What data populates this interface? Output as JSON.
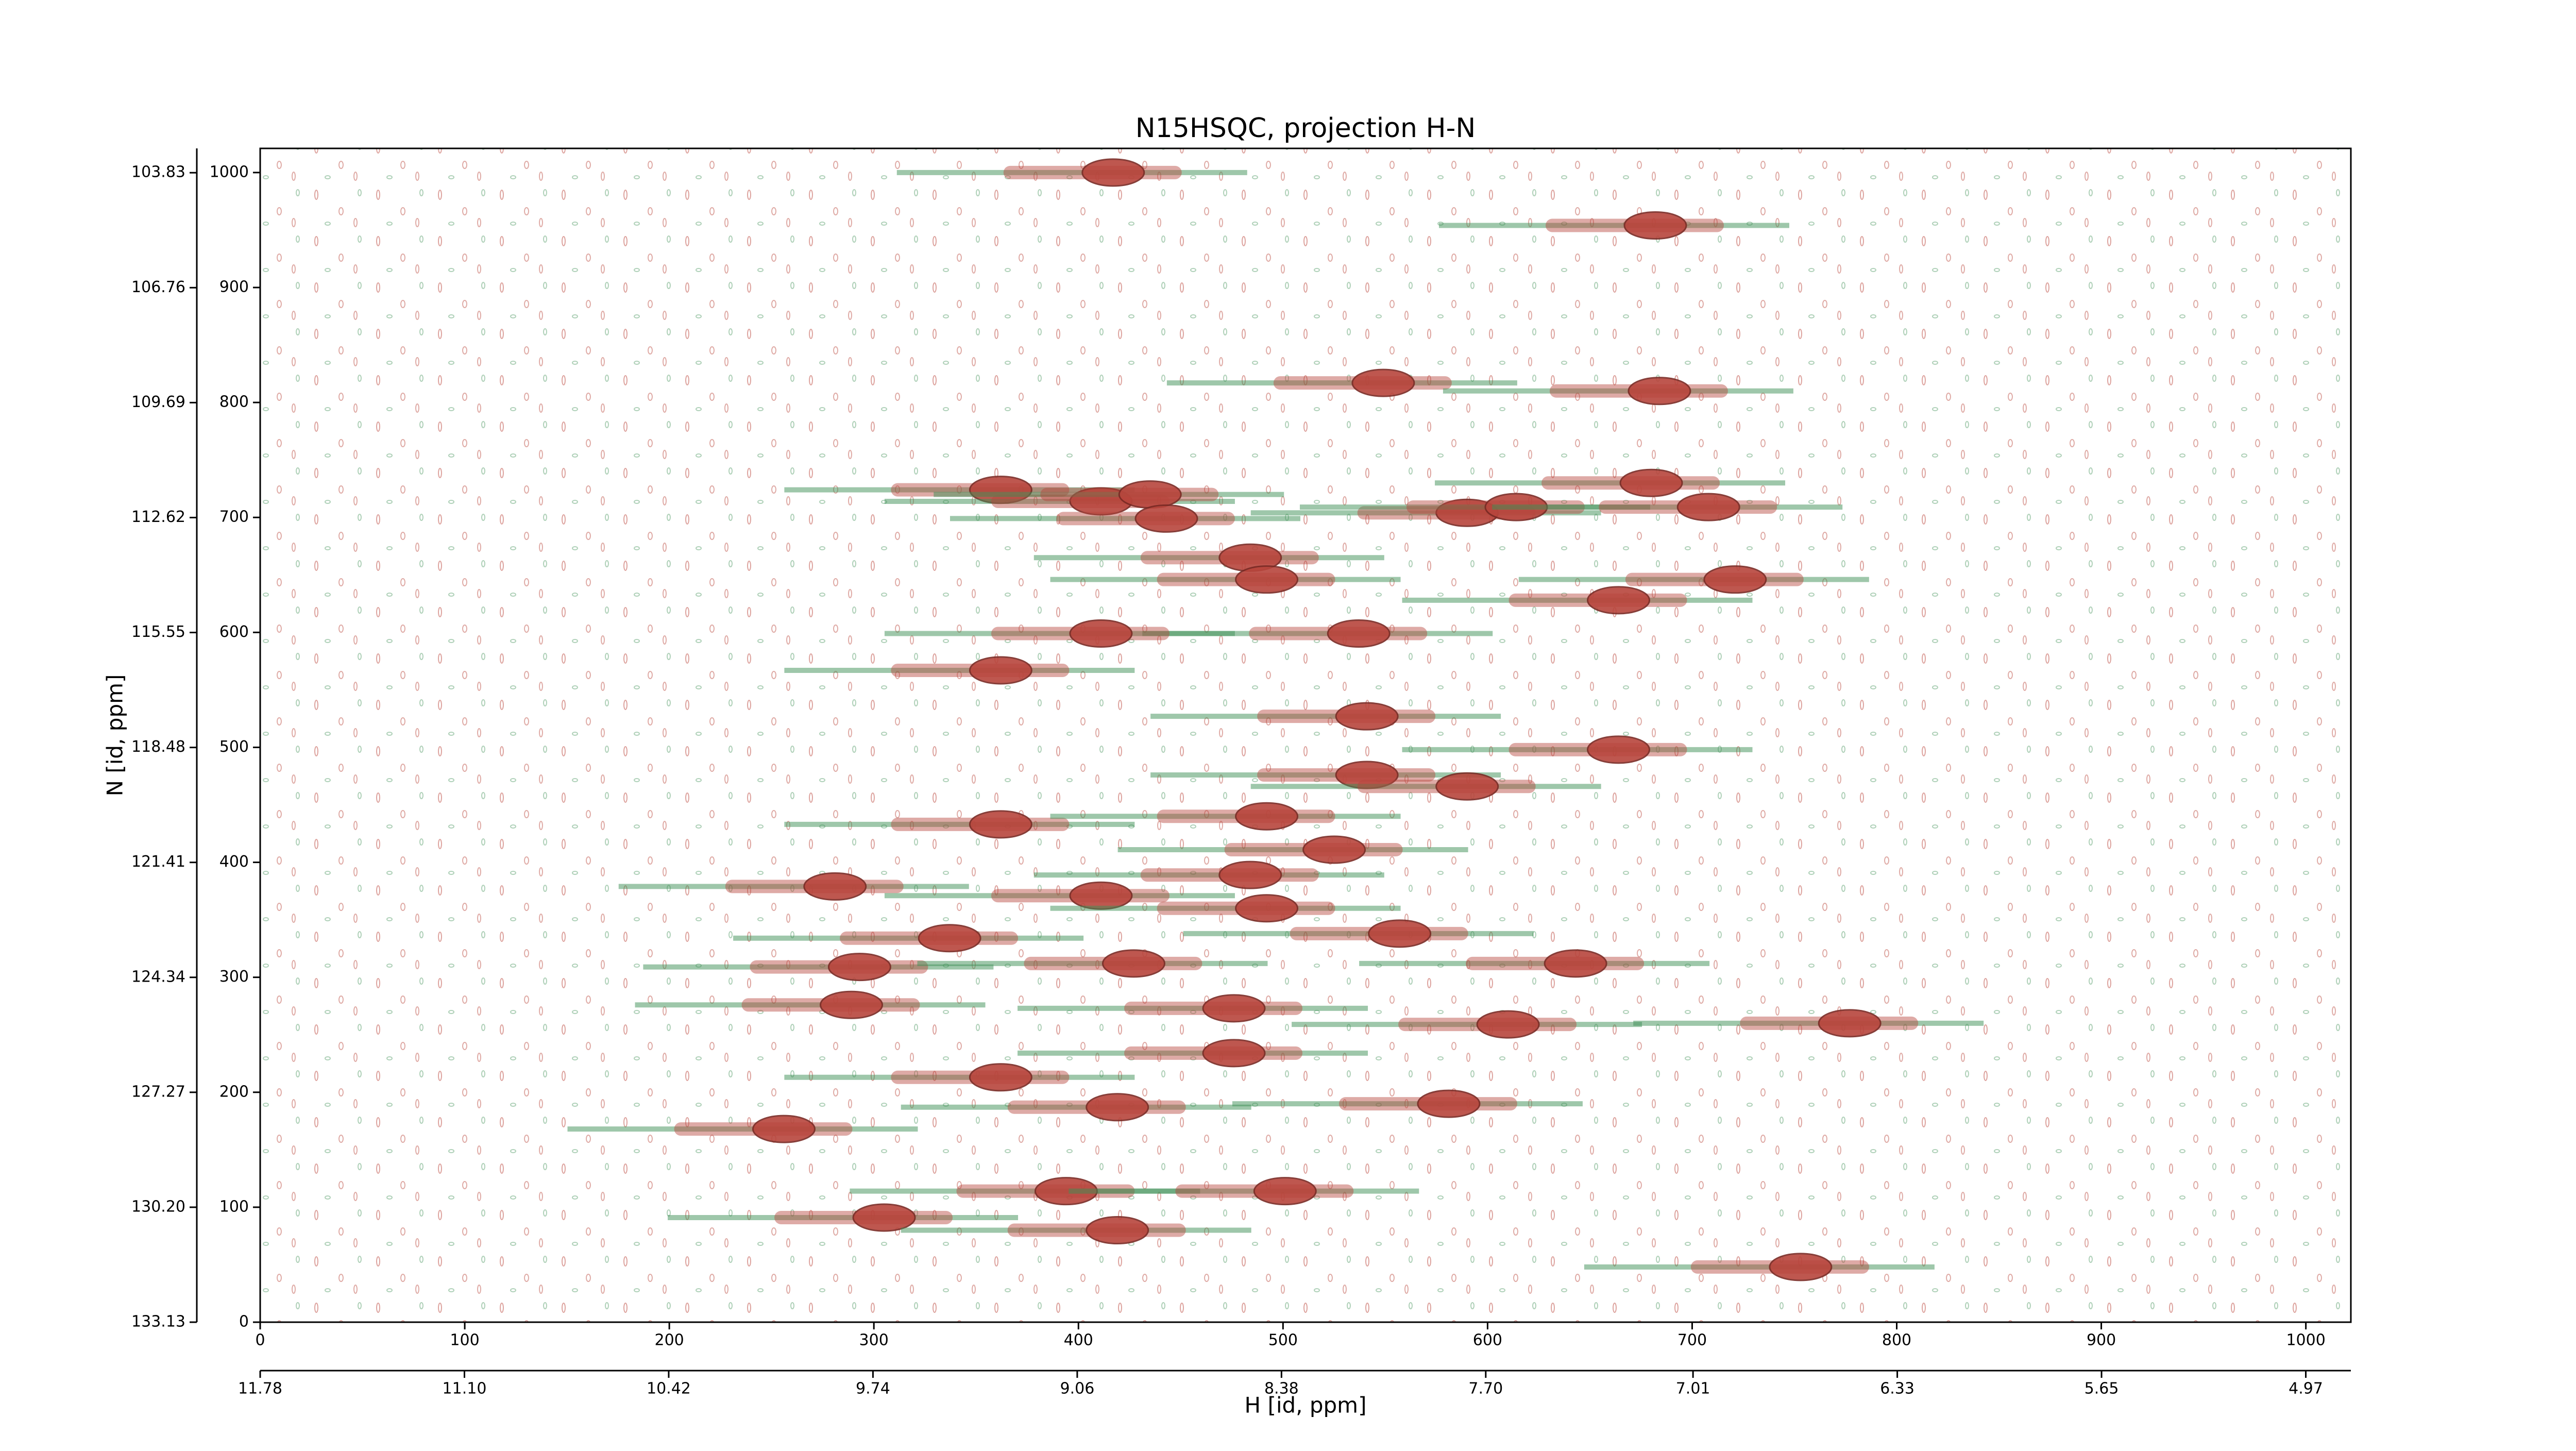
{
  "chart_data": {
    "type": "scatter",
    "title": "N15HSQC, projection H-N",
    "x_label": "H [id, ppm]",
    "y_label": "N [id, ppm]",
    "xlim": [
      0,
      1022
    ],
    "xticks": [
      0,
      100,
      200,
      300,
      400,
      500,
      600,
      700,
      800,
      900,
      1000
    ],
    "x2lim": [
      11.78,
      4.82
    ],
    "x2ticks": [
      11.78,
      {
        "value": 11.1,
        "label": "11.10"
      },
      10.42,
      9.74,
      9.06,
      8.38,
      {
        "value": 7.7,
        "label": "7.70"
      },
      7.01,
      6.33,
      5.65,
      4.97
    ],
    "ylim": [
      0,
      1021
    ],
    "yticks": [
      0,
      100,
      200,
      300,
      400,
      500,
      600,
      700,
      800,
      900,
      1000
    ],
    "y2lim": [
      133.13,
      103.21
    ],
    "y2ticks": [
      133.13,
      {
        "value": 130.2,
        "label": "130.20"
      },
      127.27,
      124.34,
      121.41,
      118.48,
      115.55,
      112.62,
      109.69,
      106.76,
      103.83
    ],
    "x": [
      417,
      682,
      549,
      684,
      680,
      362,
      411,
      435,
      590,
      614,
      708,
      443,
      484,
      721,
      492,
      664,
      537,
      411,
      362,
      541,
      664,
      541,
      590,
      362,
      492,
      525,
      484,
      281,
      411,
      492,
      557,
      337,
      293,
      427,
      643,
      289,
      476,
      777,
      610,
      476,
      362,
      419,
      581,
      256,
      394,
      501,
      305,
      419,
      753
    ],
    "y": [
      1000,
      954,
      817,
      810,
      730,
      724,
      714,
      720,
      704,
      709,
      709,
      699,
      665,
      646,
      646,
      628,
      599,
      599,
      567,
      527,
      498,
      476,
      466,
      433,
      440,
      411,
      389,
      379,
      371,
      360,
      338,
      334,
      309,
      312,
      312,
      276,
      273,
      260,
      259,
      234,
      213,
      187,
      190,
      168,
      114,
      114,
      91,
      80,
      48
    ],
    "peak_color": "#b8453c",
    "streak_color": "#3f9157"
  }
}
